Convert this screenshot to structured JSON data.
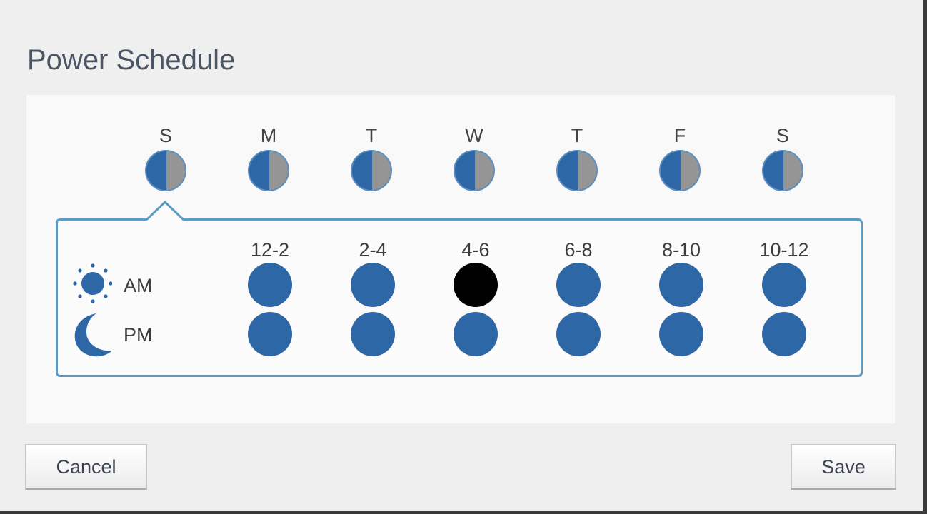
{
  "dialog": {
    "title": "Power Schedule"
  },
  "days": [
    {
      "label": "S",
      "state": "partial"
    },
    {
      "label": "M",
      "state": "partial"
    },
    {
      "label": "T",
      "state": "partial"
    },
    {
      "label": "W",
      "state": "partial"
    },
    {
      "label": "T",
      "state": "partial"
    },
    {
      "label": "F",
      "state": "partial"
    },
    {
      "label": "S",
      "state": "partial"
    }
  ],
  "selected_day_index": 0,
  "time_slots": [
    "12-2",
    "2-4",
    "4-6",
    "6-8",
    "8-10",
    "10-12"
  ],
  "periods": {
    "am": {
      "label": "AM",
      "icon": "sun-icon",
      "slots_on": [
        true,
        true,
        false,
        true,
        true,
        true
      ]
    },
    "pm": {
      "label": "PM",
      "icon": "moon-icon",
      "slots_on": [
        true,
        true,
        true,
        true,
        true,
        true
      ]
    }
  },
  "colors": {
    "on": "#2e67a6",
    "off": "#000000",
    "partial_off": "#959595",
    "accent_border": "#5b9bc5"
  },
  "buttons": {
    "cancel_label": "Cancel",
    "save_label": "Save"
  }
}
